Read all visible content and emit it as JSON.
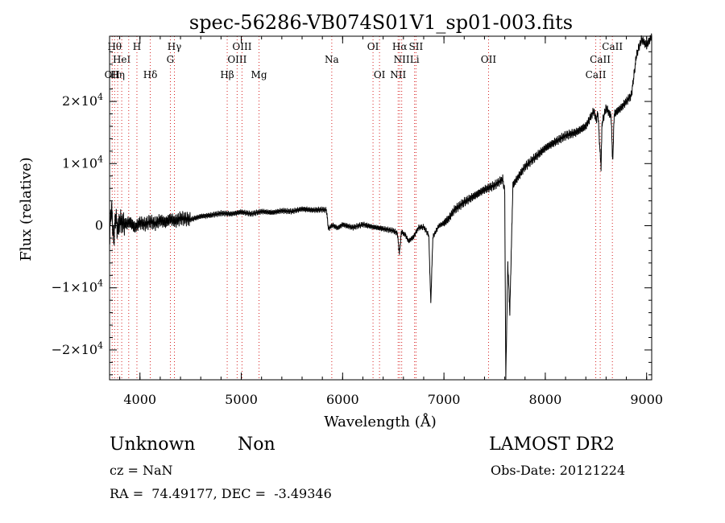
{
  "chart_data": {
    "type": "line",
    "title": "spec-56286-VB074S01V1_sp01-003.fits",
    "xlabel": "Wavelength (Å)",
    "ylabel": "Flux (relative)",
    "xlim": [
      3700,
      9050
    ],
    "ylim": [
      -24800,
      30500
    ],
    "x_ticks": [
      4000,
      5000,
      6000,
      7000,
      8000,
      9000
    ],
    "x_tick_labels": [
      "4000",
      "5000",
      "6000",
      "7000",
      "8000",
      "9000"
    ],
    "y_ticks": [
      -20000,
      -10000,
      0,
      10000,
      20000
    ],
    "y_tick_labels": [
      {
        "mant": "−2×10",
        "exp": "4"
      },
      {
        "mant": "−1×10",
        "exp": "4"
      },
      {
        "mant": "0",
        "exp": ""
      },
      {
        "mant": "1×10",
        "exp": "4"
      },
      {
        "mant": "2×10",
        "exp": "4"
      }
    ],
    "series": [
      {
        "color": "#000000",
        "points": [
          [
            3700,
            -1500
          ],
          [
            3720,
            3000
          ],
          [
            3740,
            -2500
          ],
          [
            3760,
            1500
          ],
          [
            3780,
            -800
          ],
          [
            3800,
            800
          ],
          [
            3850,
            200
          ],
          [
            3900,
            600
          ],
          [
            3950,
            -300
          ],
          [
            4000,
            500
          ],
          [
            4050,
            200
          ],
          [
            4100,
            700
          ],
          [
            4150,
            300
          ],
          [
            4200,
            900
          ],
          [
            4250,
            500
          ],
          [
            4300,
            1100
          ],
          [
            4350,
            700
          ],
          [
            4400,
            1200
          ],
          [
            4500,
            1000
          ],
          [
            4600,
            1500
          ],
          [
            4700,
            1700
          ],
          [
            4800,
            2000
          ],
          [
            4900,
            1900
          ],
          [
            5000,
            2200
          ],
          [
            5100,
            1900
          ],
          [
            5200,
            2300
          ],
          [
            5300,
            2100
          ],
          [
            5400,
            2400
          ],
          [
            5500,
            2300
          ],
          [
            5600,
            2700
          ],
          [
            5700,
            2500
          ],
          [
            5800,
            2600
          ],
          [
            5840,
            2500
          ],
          [
            5860,
            -500
          ],
          [
            5900,
            100
          ],
          [
            5950,
            -400
          ],
          [
            6000,
            200
          ],
          [
            6100,
            -300
          ],
          [
            6200,
            200
          ],
          [
            6300,
            -200
          ],
          [
            6400,
            -500
          ],
          [
            6500,
            -800
          ],
          [
            6540,
            -1200
          ],
          [
            6560,
            -4500
          ],
          [
            6580,
            -1000
          ],
          [
            6620,
            -1500
          ],
          [
            6650,
            -2500
          ],
          [
            6700,
            -1800
          ],
          [
            6750,
            -300
          ],
          [
            6800,
            -200
          ],
          [
            6850,
            -1500
          ],
          [
            6870,
            -12500
          ],
          [
            6890,
            -2000
          ],
          [
            6900,
            -1500
          ],
          [
            6950,
            0
          ],
          [
            7000,
            400
          ],
          [
            7050,
            1200
          ],
          [
            7100,
            2500
          ],
          [
            7200,
            3800
          ],
          [
            7300,
            4800
          ],
          [
            7400,
            5800
          ],
          [
            7500,
            6500
          ],
          [
            7580,
            7500
          ],
          [
            7600,
            5500
          ],
          [
            7610,
            -24800
          ],
          [
            7630,
            -6000
          ],
          [
            7650,
            -14000
          ],
          [
            7680,
            6500
          ],
          [
            7800,
            9500
          ],
          [
            7900,
            11000
          ],
          [
            8000,
            12500
          ],
          [
            8100,
            13500
          ],
          [
            8200,
            14500
          ],
          [
            8300,
            15000
          ],
          [
            8400,
            16000
          ],
          [
            8480,
            18500
          ],
          [
            8500,
            17000
          ],
          [
            8520,
            18000
          ],
          [
            8540,
            12000
          ],
          [
            8550,
            9500
          ],
          [
            8560,
            16500
          ],
          [
            8600,
            19000
          ],
          [
            8650,
            17500
          ],
          [
            8665,
            10000
          ],
          [
            8680,
            18000
          ],
          [
            8750,
            19000
          ],
          [
            8850,
            21000
          ],
          [
            8900,
            27500
          ],
          [
            8950,
            30000
          ],
          [
            9000,
            29000
          ],
          [
            9050,
            30500
          ]
        ]
      }
    ],
    "lines": [
      {
        "x": 3726,
        "label": "OII",
        "row": 3
      },
      {
        "x": 3750,
        "label": "Hθ",
        "row": 1
      },
      {
        "x": 3780,
        "label": "Hη",
        "row": 3
      },
      {
        "x": 3820,
        "label": "HeI",
        "row": 2
      },
      {
        "x": 3889,
        "label": "",
        "row": 0
      },
      {
        "x": 3970,
        "label": "H",
        "row": 1
      },
      {
        "x": 4102,
        "label": "Hδ",
        "row": 3
      },
      {
        "x": 4300,
        "label": "G",
        "row": 2
      },
      {
        "x": 4340,
        "label": "Hγ",
        "row": 1
      },
      {
        "x": 4861,
        "label": "Hβ",
        "row": 3
      },
      {
        "x": 4959,
        "label": "OIII",
        "row": 2
      },
      {
        "x": 5007,
        "label": "OIII",
        "row": 1
      },
      {
        "x": 5175,
        "label": "Mg",
        "row": 3
      },
      {
        "x": 5893,
        "label": "Na",
        "row": 2
      },
      {
        "x": 6300,
        "label": "OI",
        "row": 1
      },
      {
        "x": 6364,
        "label": "OI",
        "row": 3
      },
      {
        "x": 6548,
        "label": "NII",
        "row": 3
      },
      {
        "x": 6563,
        "label": "Hα",
        "row": 1
      },
      {
        "x": 6583,
        "label": "NII",
        "row": 2
      },
      {
        "x": 6710,
        "label": "Li",
        "row": 2
      },
      {
        "x": 6724,
        "label": "SII",
        "row": 1
      },
      {
        "x": 7440,
        "label": "OII",
        "row": 2
      },
      {
        "x": 8498,
        "label": "CaII",
        "row": 3
      },
      {
        "x": 8542,
        "label": "CaII",
        "row": 2
      },
      {
        "x": 8662,
        "label": "CaII",
        "row": 1
      }
    ]
  },
  "info": {
    "class": "Unknown",
    "subclass": "Non",
    "survey": "LAMOST DR2",
    "cz": "cz = NaN",
    "obs_date": "Obs-Date: 20121224",
    "coords": "RA =  74.49177, DEC =  -3.49346"
  }
}
